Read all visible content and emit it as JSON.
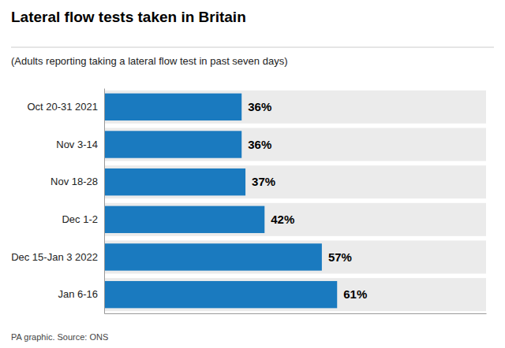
{
  "chart_data": {
    "type": "bar",
    "orientation": "horizontal",
    "title": "Lateral flow tests taken in Britain",
    "subtitle": "(Adults reporting taking a lateral flow test in past seven days)",
    "annotations": [
      "PA graphic. Source: ONS"
    ],
    "categories": [
      "Oct 20-31 2021",
      "Nov 3-14",
      "Nov 18-28",
      "Dec 1-2",
      "Dec 15-Jan 3 2022",
      "Jan 6-16"
    ],
    "values": [
      36,
      36,
      37,
      42,
      57,
      61
    ],
    "value_labels": [
      "36%",
      "36%",
      "37%",
      "42%",
      "57%",
      "61%"
    ],
    "data_labels": true,
    "color": "#1a7abf",
    "xlim": [
      0,
      100
    ],
    "grid": false,
    "tick_labels": "y"
  }
}
